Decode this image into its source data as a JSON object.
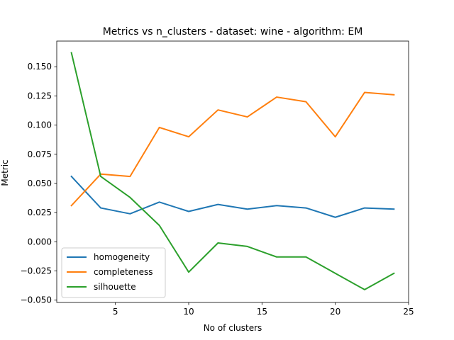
{
  "chart_data": {
    "type": "line",
    "title": "Metrics vs n_clusters - dataset: wine - algorithm: EM",
    "xlabel": "No of clusters",
    "ylabel": "Metric",
    "xlim": [
      1.0,
      25.0
    ],
    "ylim": [
      -0.052,
      0.172
    ],
    "xticks": [
      5,
      10,
      15,
      20,
      25
    ],
    "yticks": [
      -0.05,
      -0.025,
      0.0,
      0.025,
      0.05,
      0.075,
      0.1,
      0.125,
      0.15
    ],
    "ytick_labels": [
      "−0.050",
      "−0.025",
      "0.000",
      "0.025",
      "0.050",
      "0.075",
      "0.100",
      "0.125",
      "0.150"
    ],
    "grid": false,
    "legend_position": "lower-left",
    "x": [
      2,
      4,
      6,
      8,
      10,
      12,
      14,
      16,
      18,
      20,
      22,
      24
    ],
    "series": [
      {
        "name": "homogeneity",
        "color": "#1f77b4",
        "values": [
          0.056,
          0.029,
          0.024,
          0.034,
          0.026,
          0.032,
          0.028,
          0.031,
          0.029,
          0.021,
          0.029,
          0.028
        ]
      },
      {
        "name": "completeness",
        "color": "#ff7f0e",
        "values": [
          0.031,
          0.058,
          0.056,
          0.098,
          0.09,
          0.113,
          0.107,
          0.124,
          0.12,
          0.09,
          0.128,
          0.126
        ]
      },
      {
        "name": "silhouette",
        "color": "#2ca02c",
        "values": [
          0.162,
          0.056,
          0.038,
          0.014,
          -0.026,
          -0.001,
          -0.004,
          -0.013,
          -0.013,
          -0.027,
          -0.041,
          -0.027
        ]
      }
    ]
  }
}
